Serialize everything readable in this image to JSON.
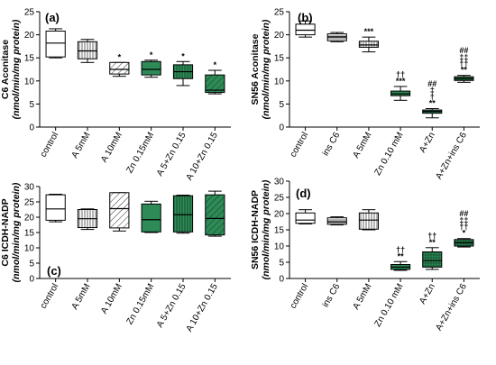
{
  "chart_data": [
    {
      "panel": "(a)",
      "type": "boxplot",
      "ylabel": "C6 Aconitase",
      "ylabel_units": "(nmol/min/mg protein)",
      "ylim": [
        0,
        25
      ],
      "yticks": [
        0,
        5,
        10,
        15,
        20,
        25
      ],
      "categories": [
        "control",
        "A 5mM",
        "A 10mM",
        "Zn 0.15mM",
        "A 5+Zn 0.15",
        "A 10+Zn 0.15"
      ],
      "boxes": [
        {
          "min": 15,
          "q1": 15.2,
          "median": 18.2,
          "q3": 20.8,
          "max": 21.3,
          "fill": "white",
          "marks": []
        },
        {
          "min": 14,
          "q1": 14.8,
          "median": 16.5,
          "q3": 18.5,
          "max": 19,
          "fill": "vlines",
          "marks": []
        },
        {
          "min": 11,
          "q1": 11.5,
          "median": 12.5,
          "q3": 14,
          "max": 14,
          "fill": "diag",
          "marks": [
            "*"
          ]
        },
        {
          "min": 10.8,
          "q1": 11.3,
          "median": 12.5,
          "q3": 14.2,
          "max": 14.5,
          "fill": "green",
          "marks": [
            "*"
          ]
        },
        {
          "min": 9,
          "q1": 10.5,
          "median": 12,
          "q3": 13.5,
          "max": 14.2,
          "fill": "greenv",
          "marks": [
            "*"
          ]
        },
        {
          "min": 7.2,
          "q1": 7.5,
          "median": 8,
          "q3": 11.3,
          "max": 12.3,
          "fill": "greend",
          "marks": [
            "*"
          ]
        }
      ]
    },
    {
      "panel": "(b)",
      "type": "boxplot",
      "ylabel": "SN56 Aconitase",
      "ylabel_units": "(nmol/min/mg protein)",
      "ylim": [
        0,
        25
      ],
      "yticks": [
        0,
        5,
        10,
        15,
        20,
        25
      ],
      "categories": [
        "control",
        "ins C6",
        "A 5mM",
        "Zn 0.10 mM",
        "A+Zn",
        "A+Zn+ins C6"
      ],
      "boxes": [
        {
          "min": 19.5,
          "q1": 20,
          "median": 21,
          "q3": 22.3,
          "max": 23,
          "fill": "white",
          "marks": []
        },
        {
          "min": 18.5,
          "q1": 18.7,
          "median": 19.5,
          "q3": 20.2,
          "max": 20.5,
          "fill": "hlines",
          "marks": []
        },
        {
          "min": 16.3,
          "q1": 17.3,
          "median": 17.8,
          "q3": 18.6,
          "max": 19.5,
          "fill": "vlines",
          "marks": [
            "***"
          ]
        },
        {
          "min": 5.8,
          "q1": 6.8,
          "median": 7.2,
          "q3": 7.8,
          "max": 8.8,
          "fill": "green",
          "marks": [
            "***",
            "††"
          ]
        },
        {
          "min": 2,
          "q1": 3,
          "median": 3.4,
          "q3": 3.7,
          "max": 4,
          "fill": "greenv",
          "marks": [
            "**",
            "†",
            "‡",
            "##"
          ]
        },
        {
          "min": 9.7,
          "q1": 10.1,
          "median": 10.5,
          "q3": 10.9,
          "max": 11.2,
          "fill": "greengrid",
          "marks": [
            "**",
            "††",
            "‡‡",
            "##"
          ]
        }
      ]
    },
    {
      "panel": "(c)",
      "type": "boxplot",
      "ylabel": "C6 ICDH-NADP",
      "ylabel_units": "(nmol/min/mg protein)",
      "ylim": [
        0,
        30
      ],
      "yticks": [
        0,
        5,
        10,
        15,
        20,
        25,
        30
      ],
      "categories": [
        "control",
        "A 5mM",
        "A 10mM",
        "Zn 0.15mM",
        "A 5+Zn 0.15",
        "A 10+Zn 0.15"
      ],
      "boxes": [
        {
          "min": 18.5,
          "q1": 19,
          "median": 22.7,
          "q3": 27.3,
          "max": 27.5,
          "fill": "white",
          "marks": []
        },
        {
          "min": 16,
          "q1": 16.6,
          "median": 19.5,
          "q3": 22.5,
          "max": 22.7,
          "fill": "vlines",
          "marks": []
        },
        {
          "min": 15.5,
          "q1": 16.5,
          "median": 22.8,
          "q3": 28,
          "max": 28,
          "fill": "diag",
          "marks": []
        },
        {
          "min": 15,
          "q1": 15.2,
          "median": 19.2,
          "q3": 24.3,
          "max": 25.2,
          "fill": "green",
          "marks": []
        },
        {
          "min": 14.8,
          "q1": 15.2,
          "median": 20.8,
          "q3": 27,
          "max": 27.2,
          "fill": "greenv",
          "marks": []
        },
        {
          "min": 13.8,
          "q1": 14.2,
          "median": 19.6,
          "q3": 27.3,
          "max": 28.5,
          "fill": "greend",
          "marks": []
        }
      ]
    },
    {
      "panel": "(d)",
      "type": "boxplot",
      "ylabel": "SN56 ICDH-NADP",
      "ylabel_units": "(nmol/min/mg protein)",
      "ylim": [
        0,
        30
      ],
      "yticks": [
        0,
        5,
        10,
        15,
        20,
        25,
        30
      ],
      "categories": [
        "control",
        "ins C6",
        "A 5mM",
        "Zn 0.10 mM",
        "A+Zn",
        "A+Zn+ins C6"
      ],
      "boxes": [
        {
          "min": 16.8,
          "q1": 17,
          "median": 18,
          "q3": 20.2,
          "max": 21.2,
          "fill": "white",
          "marks": []
        },
        {
          "min": 16.5,
          "q1": 16.7,
          "median": 17.5,
          "q3": 18.7,
          "max": 19,
          "fill": "hlines",
          "marks": []
        },
        {
          "min": 15,
          "q1": 15.2,
          "median": 18,
          "q3": 20.2,
          "max": 21.2,
          "fill": "vlines",
          "marks": []
        },
        {
          "min": 2.5,
          "q1": 2.8,
          "median": 3.5,
          "q3": 4.3,
          "max": 5.2,
          "fill": "green",
          "marks": [
            "**",
            "††"
          ]
        },
        {
          "min": 2.8,
          "q1": 3.5,
          "median": 5.5,
          "q3": 8.2,
          "max": 9.5,
          "fill": "greengrid",
          "marks": [
            "**",
            "††"
          ]
        },
        {
          "min": 9.7,
          "q1": 10,
          "median": 11,
          "q3": 12,
          "max": 12.3,
          "fill": "greengrid",
          "marks": [
            "*",
            "††",
            "‡‡",
            "##"
          ]
        }
      ]
    }
  ],
  "colors": {
    "green": "#2e8b57",
    "green_dark": "#1f6e44",
    "axis": "#000000"
  }
}
